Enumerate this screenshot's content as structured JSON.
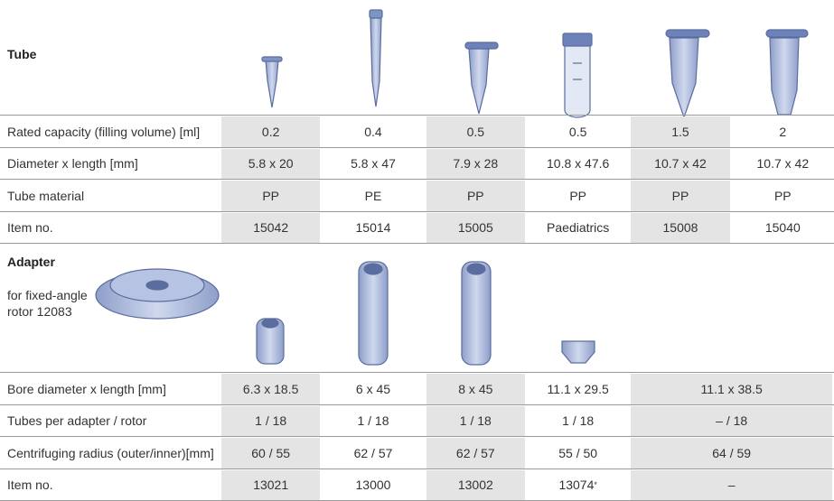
{
  "tube": {
    "heading": "Tube",
    "rows": [
      {
        "label": "Rated capacity (filling volume) [ml]",
        "cells": [
          "0.2",
          "0.4",
          "0.5",
          "0.5",
          "1.5",
          "2"
        ]
      },
      {
        "label": "Diameter x length [mm]",
        "cells": [
          "5.8 x 20",
          "5.8 x 47",
          "7.9 x 28",
          "10.8 x 47.6",
          "10.7 x 42",
          "10.7 x 42"
        ]
      },
      {
        "label": "Tube material",
        "cells": [
          "PP",
          "PE",
          "PP",
          "PP",
          "PP",
          "PP"
        ]
      },
      {
        "label": "Item no.",
        "cells": [
          "15042",
          "15014",
          "15005",
          "Paediatrics",
          "15008",
          "15040"
        ]
      }
    ]
  },
  "adapter": {
    "heading": "Adapter",
    "rotor": "for fixed-angle rotor 12083",
    "rows": [
      {
        "label": "Bore diameter x length [mm]",
        "cells": [
          "6.3 x 18.5",
          "6 x 45",
          "8 x 45",
          "11.1 x 29.5",
          "11.1 x 38.5"
        ]
      },
      {
        "label": "Tubes per adapter / rotor",
        "cells": [
          "1 / 18",
          "1 / 18",
          "1 / 18",
          "1 / 18",
          "– / 18"
        ]
      },
      {
        "label": "Centrifuging radius (outer/inner)[mm]",
        "cells": [
          "60 / 55",
          "62 / 57",
          "62 / 57",
          "55 / 50",
          "64 / 59"
        ]
      },
      {
        "label": "Item no.",
        "cells": [
          "13021",
          "13000",
          "13002",
          {
            "text": "13074",
            "sup": "*"
          },
          "–"
        ]
      }
    ]
  }
}
